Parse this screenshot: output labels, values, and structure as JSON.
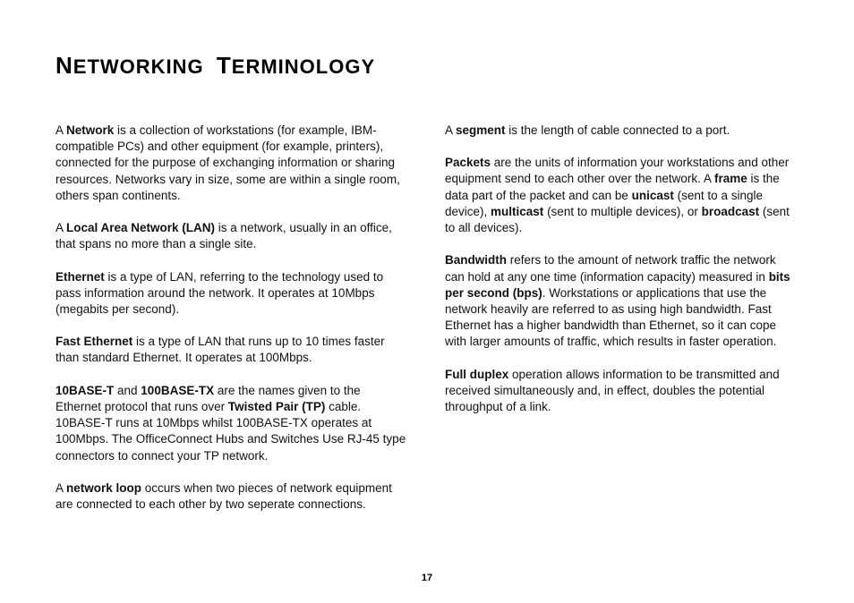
{
  "heading": {
    "word1_cap": "N",
    "word1_rest": "ETWORKING",
    "word2_cap": "T",
    "word2_rest": "ERMINOLOGY"
  },
  "left": {
    "p1_a": "A ",
    "p1_b": "Network",
    "p1_c": " is a collection of workstations (for example, IBM-compatible PCs) and other equipment (for example, printers), connected for the purpose of exchanging information or sharing resources. Networks vary in size, some are within a single room, others span continents.",
    "p2_a": "A ",
    "p2_b": "Local Area Network (LAN)",
    "p2_c": " is a network, usually in an office, that spans no more than a single site.",
    "p3_a": "Ethernet",
    "p3_b": " is a type of LAN, referring to the technology used to pass information around the network. It operates at 10Mbps (megabits per second).",
    "p4_a": "Fast Ethernet",
    "p4_b": " is a type of LAN that runs up to 10 times faster than standard Ethernet. It operates at 100Mbps.",
    "p5_a": "10BASE-T",
    "p5_b": " and ",
    "p5_c": "100BASE-TX",
    "p5_d": " are the names given to the Ethernet protocol that runs over ",
    "p5_e": "Twisted Pair (TP)",
    "p5_f": " cable. 10BASE-T runs at 10Mbps whilst 100BASE-TX operates at 100Mbps. The OfficeConnect Hubs and Switches Use RJ-45 type connectors to connect your TP network.",
    "p6_a": "A ",
    "p6_b": "network loop",
    "p6_c": " occurs when two pieces of network equipment are connected to each other by two seperate connections."
  },
  "right": {
    "p1_a": "A ",
    "p1_b": "segment",
    "p1_c": " is the length of cable connected to a port.",
    "p2_a": "Packets",
    "p2_b": " are the units of information your workstations and other equipment send to each other over the network. A ",
    "p2_c": "frame",
    "p2_d": " is the data part of the packet and can be ",
    "p2_e": "unicast",
    "p2_f": " (sent to a single device), ",
    "p2_g": "multicast",
    "p2_h": " (sent to multiple devices), or ",
    "p2_i": "broadcast",
    "p2_j": " (sent to all devices).",
    "p3_a": "Bandwidth",
    "p3_b": " refers to the amount of network traffic the network can hold at any one time (information capacity) measured in ",
    "p3_c": "bits per second (bps)",
    "p3_d": ". Workstations or applications that use the network heavily are referred to as using high bandwidth. Fast Ethernet has a higher bandwidth than Ethernet, so it can cope with larger amounts of traffic, which results in faster operation.",
    "p4_a": "Full duplex",
    "p4_b": " operation allows information to be transmitted and received simultaneously and, in effect, doubles the potential throughput of a link."
  },
  "page_number": "17"
}
